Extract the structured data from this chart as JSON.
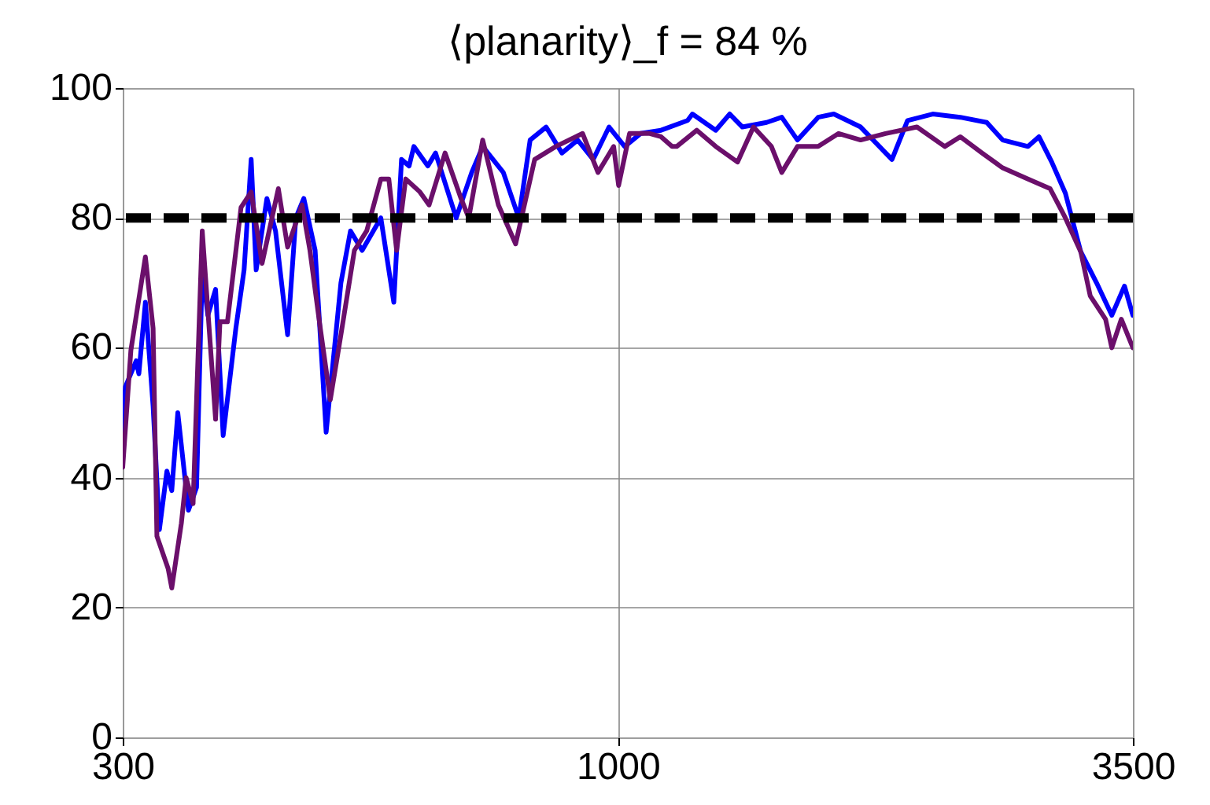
{
  "chart_data": {
    "type": "line",
    "title": "⟨planarity⟩_f = 84 %",
    "log": "x",
    "xlim": [
      300,
      3500
    ],
    "xticks": [
      300,
      1000,
      3500
    ],
    "ylim": [
      0,
      100
    ],
    "yticks": [
      0,
      20,
      40,
      60,
      80,
      100
    ],
    "grid": true,
    "legend": false,
    "marker": "none",
    "line_style": "solid",
    "ref_lines": [
      {
        "axis": "y",
        "value": 80,
        "color": "#000000",
        "line_style": "dashed"
      }
    ],
    "series": [
      {
        "color": "#0000ff",
        "x": [
          300,
          302,
          310,
          312,
          317,
          323,
          328,
          334,
          338,
          343,
          352,
          359,
          364,
          369,
          376,
          383,
          395,
          403,
          410,
          415,
          426,
          435,
          448,
          457,
          466,
          479,
          492,
          510,
          522,
          537,
          562,
          580,
          591,
          602,
          609,
          630,
          642,
          675,
          701,
          720,
          757,
          786,
          808,
          840,
          873,
          907,
          942,
          979,
          1017,
          1057,
          1111,
          1185,
          1199,
          1269,
          1313,
          1354,
          1436,
          1490,
          1548,
          1628,
          1691,
          1805,
          1948,
          2023,
          2151,
          2300,
          2453,
          2550,
          2712,
          2785,
          2873,
          2970,
          3083,
          3204,
          3325,
          3429,
          3500
        ],
        "values": [
          47,
          54,
          58,
          56,
          67,
          51,
          32,
          41,
          38,
          50,
          35,
          38.5,
          72,
          65,
          69,
          46.5,
          63,
          72,
          89,
          72,
          83,
          78,
          62,
          80,
          83,
          75,
          47,
          70,
          78,
          75,
          80,
          67,
          89,
          88,
          91,
          88,
          90,
          80,
          87,
          91,
          87,
          80,
          92,
          94,
          90,
          92,
          89,
          94,
          91,
          93,
          93.5,
          95,
          96,
          93.5,
          96,
          94,
          94.7,
          95.5,
          92,
          95.5,
          96,
          94,
          89,
          95,
          96,
          95.5,
          94.7,
          92,
          91,
          92.5,
          88.6,
          83.8,
          74.8,
          70,
          65,
          69.5,
          65
        ]
      },
      {
        "color": "#6b0f6b",
        "x": [
          300,
          306,
          317,
          323,
          326,
          335,
          338,
          346,
          350,
          356,
          364,
          376,
          380,
          387,
          400,
          410,
          421,
          438,
          448,
          464,
          473,
          484,
          497,
          510,
          527,
          543,
          562,
          573,
          584,
          597,
          618,
          632,
          657,
          683,
          696,
          720,
          748,
          780,
          817,
          860,
          918,
          953,
          990,
          1002,
          1029,
          1081,
          1111,
          1141,
          1154,
          1212,
          1269,
          1338,
          1391,
          1453,
          1490,
          1548,
          1628,
          1711,
          1805,
          1918,
          2070,
          2215,
          2300,
          2425,
          2550,
          2712,
          2862,
          2970,
          3083,
          3155,
          3275,
          3325,
          3403,
          3500
        ],
        "values": [
          41.6,
          59.6,
          74,
          63,
          31,
          26,
          23,
          33,
          40,
          36,
          78,
          49,
          64,
          64,
          81.6,
          84,
          73,
          84.5,
          75.5,
          82,
          75,
          64,
          52,
          62,
          75,
          78,
          86,
          86,
          75,
          86,
          84,
          82,
          90,
          83,
          80,
          92,
          82,
          76,
          89,
          91,
          93,
          87,
          91,
          85,
          93,
          93,
          92.5,
          91,
          91,
          93.5,
          91,
          88.6,
          94,
          91,
          87,
          91,
          91,
          93,
          92,
          93,
          94,
          91,
          92.5,
          90,
          87.7,
          86,
          84.5,
          80,
          74.8,
          68,
          64.4,
          60,
          64.4,
          60
        ]
      }
    ]
  }
}
